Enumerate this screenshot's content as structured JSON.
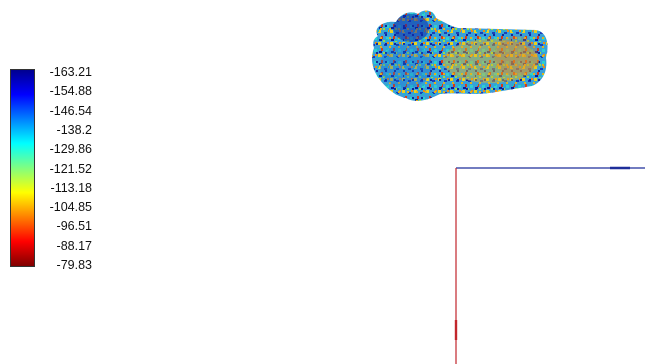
{
  "colorbar": {
    "colors": [
      "#00008f",
      "#0000ff",
      "#0080ff",
      "#00ffff",
      "#80ff80",
      "#ffff00",
      "#ff8000",
      "#ff0000",
      "#800000"
    ],
    "ticks": [
      {
        "label": "-163.21"
      },
      {
        "label": "-154.88"
      },
      {
        "label": "-146.54"
      },
      {
        "label": "-138.2"
      },
      {
        "label": "-129.86"
      },
      {
        "label": "-121.52"
      },
      {
        "label": "-113.18"
      },
      {
        "label": "-104.85"
      },
      {
        "label": "-96.51"
      },
      {
        "label": "-88.17"
      },
      {
        "label": "-79.83"
      }
    ]
  },
  "axes": {
    "x_color": "#1e2e9a",
    "y_color": "#c2262c"
  }
}
